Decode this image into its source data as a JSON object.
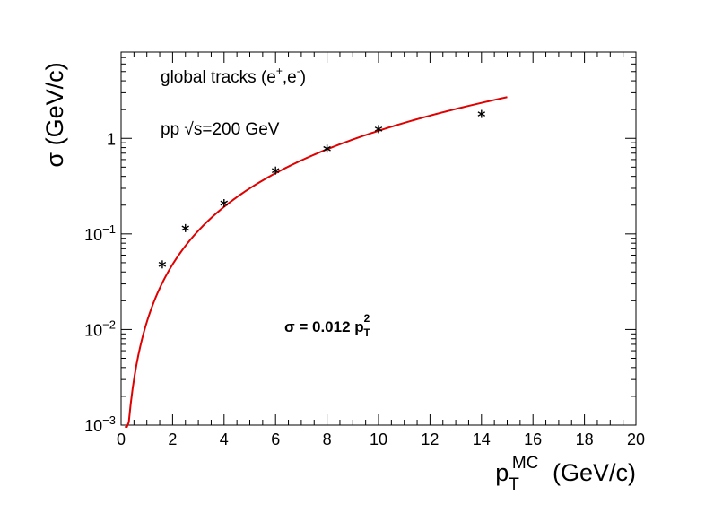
{
  "chart_data": {
    "type": "scatter",
    "xlabel": {
      "main": "p",
      "sub": "T",
      "sup": "MC",
      "unit": "(GeV/c)"
    },
    "ylabel": "σ (GeV/c)",
    "xlim": [
      0,
      20
    ],
    "ylim": [
      0.001,
      8
    ],
    "y_scale": "log",
    "x_ticks": [
      0,
      2,
      4,
      6,
      8,
      10,
      12,
      14,
      16,
      18,
      20
    ],
    "x_tick_labels": [
      "0",
      "2",
      "4",
      "6",
      "8",
      "10",
      "12",
      "14",
      "16",
      "18",
      "20"
    ],
    "y_ticks": [
      {
        "value": 0.001,
        "base": "10",
        "exp": "−3"
      },
      {
        "value": 0.01,
        "base": "10",
        "exp": "−2"
      },
      {
        "value": 0.1,
        "base": "10",
        "exp": "−1"
      },
      {
        "value": 1,
        "base": "1",
        "exp": ""
      }
    ],
    "series": [
      {
        "marker": "asterisk",
        "color": "#000000",
        "x": [
          1.6,
          2.5,
          4,
          6,
          8,
          10,
          14
        ],
        "y": [
          0.048,
          0.115,
          0.21,
          0.46,
          0.78,
          1.25,
          1.8
        ]
      }
    ],
    "fit": {
      "color": "#e00000",
      "coefficient": 0.012,
      "power": 2,
      "x_range": [
        0.15,
        15
      ]
    },
    "annotations": {
      "line1_main": "global tracks (e",
      "line1_sup1": "+",
      "line1_mid": ",e",
      "line1_sup2": "-",
      "line1_end": ")",
      "line2_a": "pp ",
      "line2_sqrt": "√s",
      "line2_b": "=200 GeV",
      "formula_main": "σ = 0.012 p",
      "formula_sub": "T",
      "formula_sup": "2"
    }
  }
}
